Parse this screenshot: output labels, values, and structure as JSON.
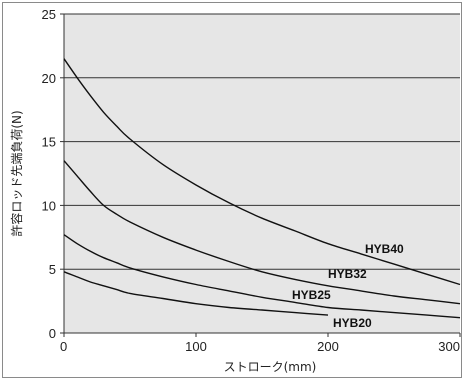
{
  "chart_data": {
    "type": "line",
    "xlabel": "ストローク(mm)",
    "ylabel": "許容ロッド先端負荷(N)",
    "xlim": [
      0,
      300
    ],
    "ylim": [
      0,
      25
    ],
    "x_ticks": [
      "0",
      "100",
      "200",
      "300"
    ],
    "y_ticks": [
      "0",
      "5",
      "10",
      "15",
      "20",
      "25"
    ],
    "grid": "horizontal",
    "plot_background": "#e6e6e6",
    "line_color": "#111111",
    "series": [
      {
        "name": "HYB40",
        "x": [
          0,
          10,
          20,
          30,
          40,
          50,
          75,
          100,
          125,
          150,
          175,
          200,
          225,
          250,
          275,
          300
        ],
        "y": [
          21.5,
          20.0,
          18.6,
          17.3,
          16.2,
          15.2,
          13.2,
          11.6,
          10.2,
          9.0,
          8.0,
          7.0,
          6.2,
          5.4,
          4.6,
          3.8
        ]
      },
      {
        "name": "HYB32",
        "x": [
          0,
          10,
          20,
          30,
          40,
          50,
          75,
          100,
          125,
          150,
          175,
          200,
          225,
          250,
          275,
          300
        ],
        "y": [
          13.5,
          12.3,
          11.1,
          10.0,
          9.3,
          8.7,
          7.5,
          6.5,
          5.6,
          4.8,
          4.2,
          3.7,
          3.3,
          2.9,
          2.6,
          2.3
        ]
      },
      {
        "name": "HYB25",
        "x": [
          0,
          10,
          20,
          30,
          40,
          50,
          75,
          100,
          125,
          150,
          175,
          200,
          225,
          250,
          275,
          300
        ],
        "y": [
          7.7,
          7.0,
          6.4,
          5.9,
          5.5,
          5.1,
          4.4,
          3.8,
          3.3,
          2.8,
          2.4,
          2.0,
          1.8,
          1.6,
          1.4,
          1.2
        ]
      },
      {
        "name": "HYB20",
        "x": [
          0,
          10,
          20,
          30,
          40,
          50,
          75,
          100,
          125,
          150,
          175,
          200
        ],
        "y": [
          4.8,
          4.4,
          4.0,
          3.7,
          3.4,
          3.1,
          2.7,
          2.3,
          2.0,
          1.8,
          1.6,
          1.4
        ]
      }
    ]
  }
}
